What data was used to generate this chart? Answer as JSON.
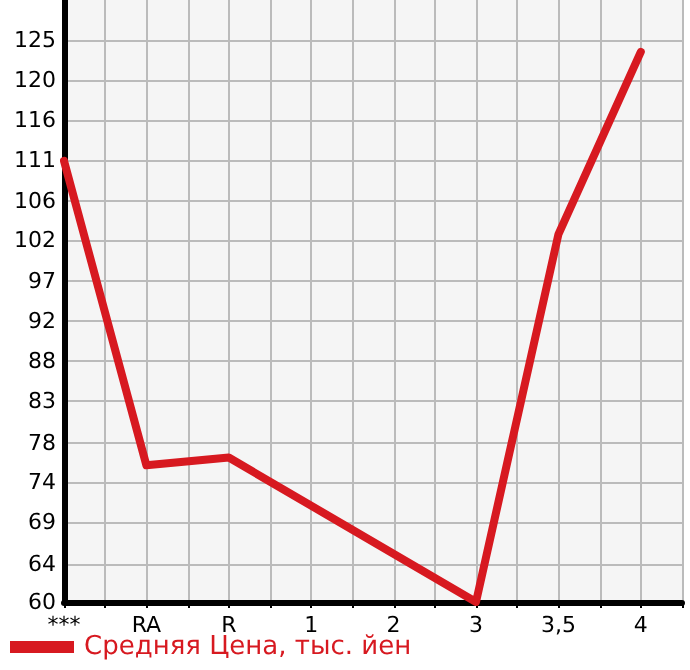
{
  "chart_data": {
    "type": "line",
    "categories": [
      "***",
      "RA",
      "R",
      "1",
      "2",
      "3",
      "3,5",
      "4"
    ],
    "series": [
      {
        "name": "Средняя Цена, тыс. йен",
        "color": "#d71920",
        "values": [
          111,
          75.8,
          76.7,
          null,
          null,
          60,
          102.5,
          123.6
        ]
      }
    ],
    "ylim": [
      60,
      129.6
    ],
    "yticks": [
      60,
      {
        "value": 64.4,
        "label": "64"
      },
      {
        "value": 69.3,
        "label": "69"
      },
      {
        "value": 73.9,
        "label": "74"
      },
      {
        "value": 78.4,
        "label": "78"
      },
      {
        "value": 83.2,
        "label": "83"
      },
      {
        "value": 87.9,
        "label": "88"
      },
      {
        "value": 92.5,
        "label": "92"
      },
      {
        "value": 97.1,
        "label": "97"
      },
      {
        "value": 101.8,
        "label": "102"
      },
      {
        "value": 106.4,
        "label": "106"
      },
      {
        "value": 111.1,
        "label": "111"
      },
      {
        "value": 115.7,
        "label": "116"
      },
      {
        "value": 120.4,
        "label": "120"
      },
      {
        "value": 125,
        "label": "125"
      }
    ],
    "grid": true,
    "legend": "bottom left",
    "marker": "none",
    "line_style": "solid"
  }
}
